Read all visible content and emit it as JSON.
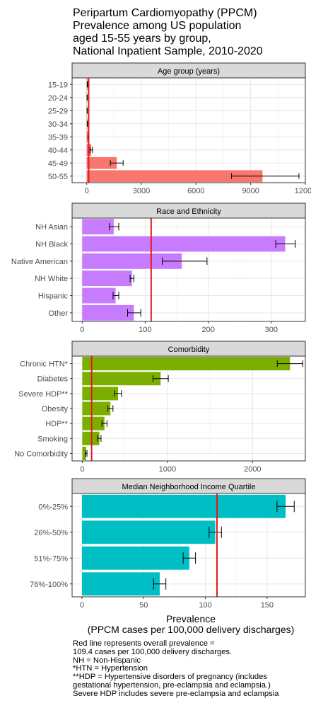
{
  "title_lines": [
    "Peripartum Cardiomyopathy (PPCM)",
    "Prevalence among US population",
    "aged 15-55 years by group,",
    "National Inpatient Sample, 2010-2020"
  ],
  "xlabel_lines": [
    "Prevalence",
    "(PPCM cases per 100,000 delivery discharges)"
  ],
  "notes": [
    "Red line represents overall prevalence =",
    "109.4 cases per 100,000 delivery discharges.",
    "NH = Non-Hispanic",
    "*HTN = Hypertension",
    "**HDP = Hypertensive disorders of pregnancy (includes",
    "gestational hypertension, pre-eclampsia and eclampsia.)",
    "Severe HDP includes severe pre-eclampsia and eclampsia"
  ],
  "colors": {
    "age": "#F8766D",
    "race": "#C77CFF",
    "comorbidity": "#7CAE00",
    "income": "#00BFC4",
    "reference_line": "#E41A1C",
    "strip_fill": "#D9D9D9"
  },
  "chart_data": [
    {
      "type": "bar",
      "orientation": "horizontal",
      "panel_title": "Age group (years)",
      "reference_line": 109.4,
      "xlim": [
        -800,
        12000
      ],
      "xticks": [
        0,
        3000,
        6000,
        9000,
        12000
      ],
      "xtick_labels": [
        "0",
        "3000",
        "6000",
        "9000",
        "12000"
      ],
      "categories": [
        "15-19",
        "20-24",
        "25-29",
        "30-34",
        "35-39",
        "40-44",
        "45-49",
        "50-55"
      ],
      "values": [
        40,
        25,
        25,
        35,
        90,
        250,
        1650,
        9650
      ],
      "error_low": [
        30,
        20,
        20,
        30,
        70,
        180,
        1300,
        7950
      ],
      "error_high": [
        50,
        30,
        30,
        40,
        110,
        320,
        2000,
        11650
      ],
      "grid": true
    },
    {
      "type": "bar",
      "orientation": "horizontal",
      "panel_title": "Race and Ethnicity",
      "reference_line": 109.4,
      "xlim": [
        -16,
        354
      ],
      "xticks": [
        0,
        100,
        200,
        300
      ],
      "xtick_labels": [
        "0",
        "100",
        "200",
        "300"
      ],
      "categories": [
        "NH Asian",
        "NH Black",
        "Native American",
        "NH White",
        "Hispanic",
        "Other"
      ],
      "values": [
        50,
        322,
        158,
        79,
        53,
        82
      ],
      "error_low": [
        43,
        307,
        127,
        76,
        49,
        72
      ],
      "error_high": [
        58,
        338,
        198,
        82,
        58,
        93
      ],
      "grid": true
    },
    {
      "type": "bar",
      "orientation": "horizontal",
      "panel_title": "Comorbidity",
      "reference_line": 109.4,
      "xlim": [
        -120,
        2620
      ],
      "xticks": [
        0,
        1000,
        2000
      ],
      "xtick_labels": [
        "0",
        "1000",
        "2000"
      ],
      "categories": [
        "Chronic HTN*",
        "Diabetes",
        "Severe HDP**",
        "Obesity",
        "HDP**",
        "Smoking",
        "No Comorbidity"
      ],
      "values": [
        2440,
        920,
        420,
        330,
        260,
        200,
        45
      ],
      "error_low": [
        2290,
        830,
        380,
        300,
        230,
        180,
        35
      ],
      "error_high": [
        2590,
        1010,
        460,
        360,
        290,
        220,
        55
      ],
      "grid": true
    },
    {
      "type": "bar",
      "orientation": "horizontal",
      "panel_title": "Median Neighborhood Income Quartile",
      "reference_line": 109.4,
      "xlim": [
        -8,
        181
      ],
      "xticks": [
        0,
        50,
        100,
        150
      ],
      "xtick_labels": [
        "0",
        "50",
        "100",
        "150"
      ],
      "categories": [
        "0%-25%",
        "26%-50%",
        "51%-75%",
        "76%-100%"
      ],
      "values": [
        165,
        108,
        87,
        63
      ],
      "error_low": [
        158,
        103,
        82,
        58
      ],
      "error_high": [
        172,
        113,
        92,
        68
      ],
      "grid": true
    }
  ]
}
